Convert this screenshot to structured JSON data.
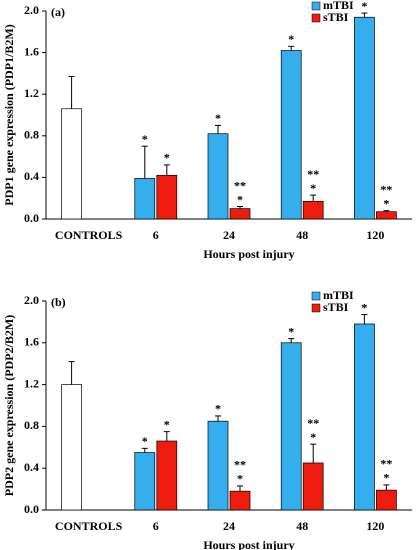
{
  "chart_data": [
    {
      "type": "bar",
      "panel": "(a)",
      "ylabel": "PDP1 gene expression (PDP1/B2M)",
      "xlabel": "Hours post injury",
      "categories": [
        "CONTROLS",
        "6",
        "24",
        "48",
        "120"
      ],
      "ylim": [
        0,
        2
      ],
      "yticks": [
        {
          "value": 0,
          "label": "0.0"
        },
        0.4,
        0.8,
        1.2,
        1.6,
        {
          "value": 2,
          "label": "2.0"
        }
      ],
      "legend": "top-right",
      "series": [
        {
          "color": "#ffffff",
          "values": [
            1.06,
            null,
            null,
            null,
            null
          ],
          "errors": [
            0.31,
            null,
            null,
            null,
            null
          ]
        },
        {
          "name": "mTBI",
          "color": "#35aeee",
          "values": [
            null,
            0.39,
            0.82,
            1.62,
            1.94
          ],
          "errors": [
            null,
            0.31,
            0.08,
            0.04,
            0.04
          ],
          "markers": [
            null,
            [
              "*"
            ],
            [
              "*"
            ],
            [
              "*"
            ],
            [
              "*"
            ]
          ]
        },
        {
          "name": "sTBI",
          "color": "#ee1c0e",
          "values": [
            null,
            0.42,
            0.1,
            0.17,
            0.07
          ],
          "errors": [
            null,
            0.1,
            0.02,
            0.06,
            0.01
          ],
          "markers": [
            null,
            [
              "*"
            ],
            [
              "*",
              "**"
            ],
            [
              "*",
              "**"
            ],
            [
              "*",
              "**"
            ]
          ]
        }
      ]
    },
    {
      "type": "bar",
      "panel": "(b)",
      "ylabel": "PDP2 gene expression (PDP2/B2M)",
      "xlabel": "Hours post injury",
      "categories": [
        "CONTROLS",
        "6",
        "24",
        "48",
        "120"
      ],
      "ylim": [
        0,
        2
      ],
      "yticks": [
        {
          "value": 0,
          "label": "0.0"
        },
        0.4,
        0.8,
        1.2,
        1.6,
        {
          "value": 2,
          "label": "2.0"
        }
      ],
      "legend": "top-right",
      "series": [
        {
          "color": "#ffffff",
          "values": [
            1.2,
            null,
            null,
            null,
            null
          ],
          "errors": [
            0.22,
            null,
            null,
            null,
            null
          ]
        },
        {
          "name": "mTBI",
          "color": "#35aeee",
          "values": [
            null,
            0.55,
            0.85,
            1.6,
            1.78
          ],
          "errors": [
            null,
            0.04,
            0.05,
            0.04,
            0.09
          ],
          "markers": [
            null,
            [
              "*"
            ],
            [
              "*"
            ],
            [
              "*"
            ],
            [
              "*"
            ]
          ]
        },
        {
          "name": "sTBI",
          "color": "#ee1c0e",
          "values": [
            null,
            0.66,
            0.18,
            0.45,
            0.19
          ],
          "errors": [
            null,
            0.09,
            0.05,
            0.18,
            0.05
          ],
          "markers": [
            null,
            [
              "*"
            ],
            [
              "*",
              "**"
            ],
            [
              "*",
              "**"
            ],
            [
              "*",
              "**"
            ]
          ]
        }
      ]
    }
  ]
}
